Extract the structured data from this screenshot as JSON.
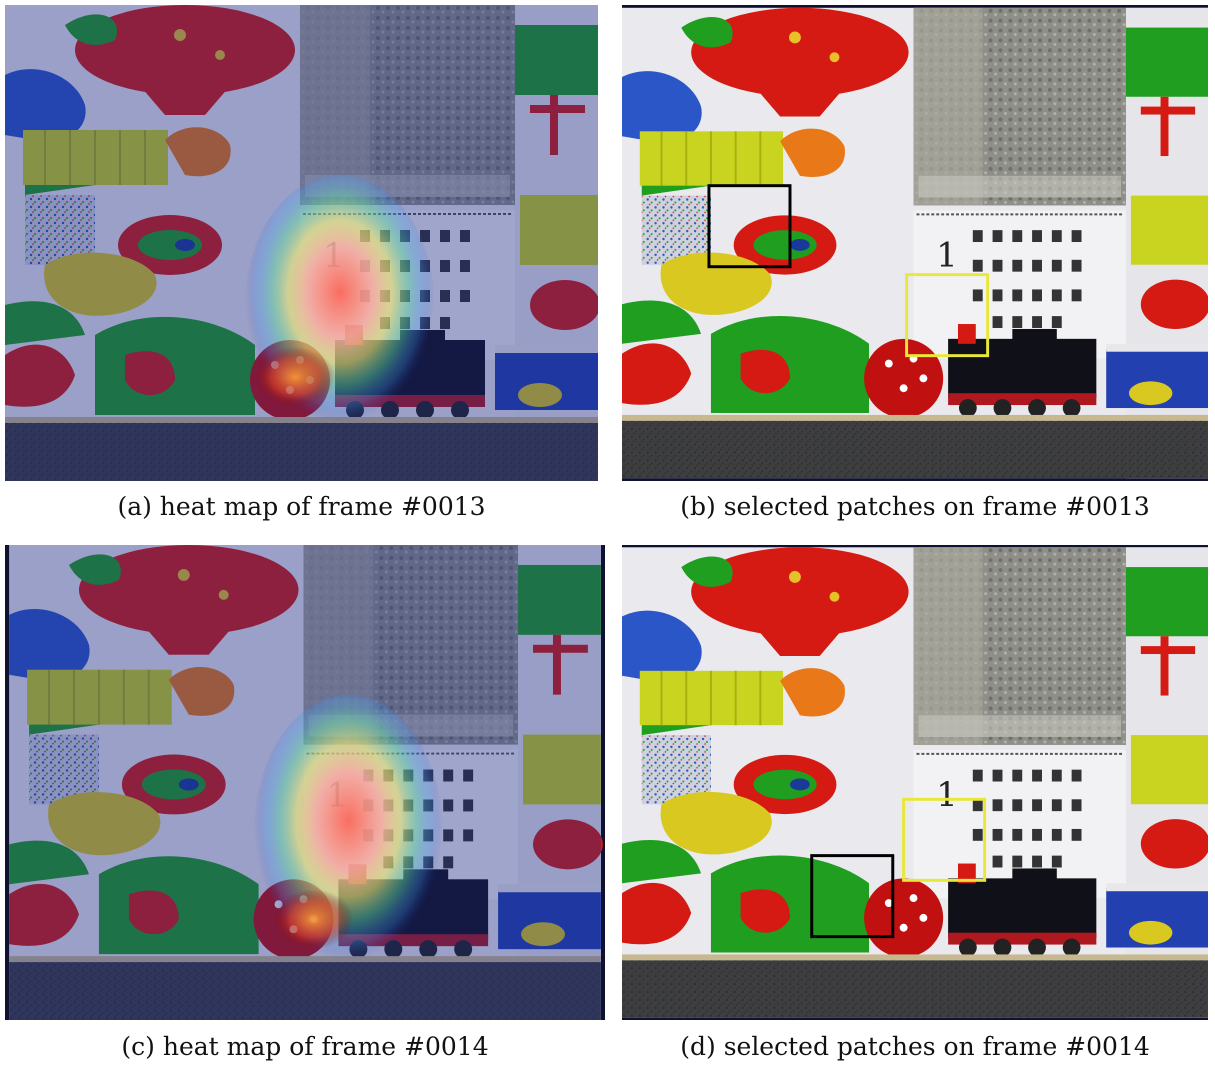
{
  "figure": {
    "panels": [
      {
        "id": "a",
        "caption": "(a) heat map of frame #0013",
        "kind": "heatmap"
      },
      {
        "id": "b",
        "caption": "(b) selected patches on frame #0013",
        "kind": "patches"
      },
      {
        "id": "c",
        "caption": "(c) heat map of frame #0014",
        "kind": "heatmap"
      },
      {
        "id": "d",
        "caption": "(d) selected patches on frame #0014",
        "kind": "patches"
      }
    ],
    "calendar_header": "1",
    "colors": {
      "red": "#d41a12",
      "green": "#1f9e1f",
      "blue": "#2a56c8",
      "yellow": "#d8d40e",
      "orange": "#e87818",
      "white": "#e9e9ee",
      "floor": "#2a2a2a",
      "patch_black": "#000000",
      "patch_yellow": "#e8e83a"
    }
  }
}
